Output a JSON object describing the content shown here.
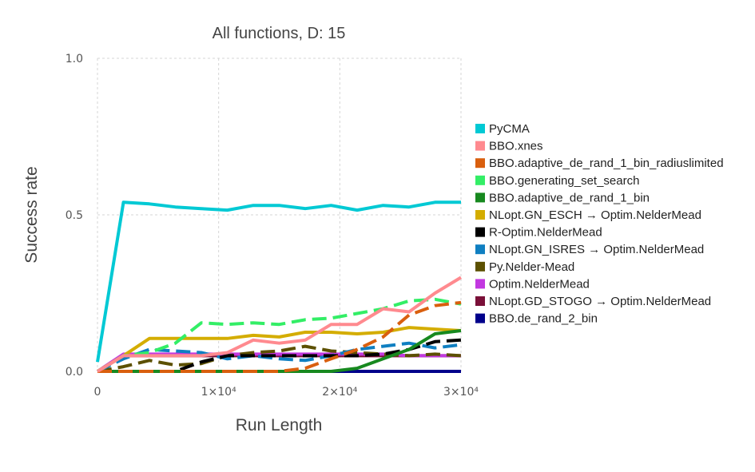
{
  "chart_data": {
    "type": "line",
    "title": "All functions, D: 15",
    "xlabel": "Run Length",
    "ylabel": "Success rate",
    "xlim": [
      0,
      30000
    ],
    "ylim": [
      0,
      1.0
    ],
    "x_ticks": [
      {
        "value": 0,
        "label": "0"
      },
      {
        "value": 10000,
        "label": "1×10⁴"
      },
      {
        "value": 20000,
        "label": "2×10⁴"
      },
      {
        "value": 30000,
        "label": "3×10⁴"
      }
    ],
    "y_ticks": [
      {
        "value": 0,
        "label": "0.0"
      },
      {
        "value": 0.5,
        "label": "0.5"
      },
      {
        "value": 1.0,
        "label": "1.0"
      }
    ],
    "grid": true,
    "legend_position": "right",
    "x": [
      0,
      2143,
      4286,
      6429,
      8571,
      10714,
      12857,
      15000,
      17143,
      19286,
      21429,
      23571,
      25714,
      27857,
      30000
    ],
    "series": [
      {
        "name": "PyCMA",
        "color": "#00c9d4",
        "dash": "solid",
        "values": [
          0.03,
          0.54,
          0.535,
          0.525,
          0.52,
          0.515,
          0.53,
          0.53,
          0.52,
          0.53,
          0.515,
          0.53,
          0.525,
          0.54,
          0.54
        ]
      },
      {
        "name": "BBO.xnes",
        "color": "#ff8a8f",
        "dash": "solid",
        "values": [
          0,
          0.05,
          0.05,
          0.05,
          0.05,
          0.06,
          0.1,
          0.09,
          0.1,
          0.15,
          0.15,
          0.2,
          0.19,
          0.25,
          0.3
        ]
      },
      {
        "name": "BBO.adaptive_de_rand_1_bin_radiuslimited",
        "color": "#d95f0e",
        "dash": "dash",
        "values": [
          0,
          0,
          0,
          0,
          0,
          0,
          0,
          0,
          0.01,
          0.04,
          0.07,
          0.11,
          0.18,
          0.21,
          0.22
        ]
      },
      {
        "name": "BBO.generating_set_search",
        "color": "#33ee66",
        "dash": "dash",
        "values": [
          0,
          0.05,
          0.06,
          0.09,
          0.155,
          0.15,
          0.155,
          0.15,
          0.165,
          0.17,
          0.185,
          0.2,
          0.225,
          0.23,
          0.215
        ]
      },
      {
        "name": "BBO.adaptive_de_rand_1_bin",
        "color": "#17891f",
        "dash": "solid",
        "values": [
          0,
          0,
          0,
          0,
          0,
          0,
          0,
          0,
          0,
          0,
          0.01,
          0.04,
          0.07,
          0.12,
          0.13
        ]
      },
      {
        "name": "NLopt.GN_ESCH → Optim.NelderMead",
        "color": "#d4ad00",
        "dash": "solid",
        "values": [
          0,
          0.05,
          0.105,
          0.105,
          0.105,
          0.105,
          0.115,
          0.11,
          0.125,
          0.125,
          0.12,
          0.125,
          0.14,
          0.135,
          0.13
        ]
      },
      {
        "name": "R-Optim.NelderMead",
        "color": "#000000",
        "dash": "dash",
        "values": [
          0,
          0,
          0,
          0,
          0.03,
          0.05,
          0.05,
          0.05,
          0.05,
          0.05,
          0.05,
          0.055,
          0.07,
          0.095,
          0.1
        ]
      },
      {
        "name": "NLopt.GN_ISRES → Optim.NelderMead",
        "color": "#0f7fc1",
        "dash": "dash",
        "values": [
          0,
          0.04,
          0.07,
          0.065,
          0.06,
          0.04,
          0.05,
          0.04,
          0.035,
          0.05,
          0.07,
          0.08,
          0.09,
          0.075,
          0.085
        ]
      },
      {
        "name": "Py.Nelder-Mead",
        "color": "#5c5000",
        "dash": "dash",
        "values": [
          0,
          0.015,
          0.035,
          0.02,
          0.025,
          0.05,
          0.06,
          0.065,
          0.08,
          0.065,
          0.06,
          0.055,
          0.05,
          0.055,
          0.05
        ]
      },
      {
        "name": "Optim.NelderMead",
        "color": "#c238e0",
        "dash": "solid",
        "values": [
          0,
          0.055,
          0.055,
          0.055,
          0.055,
          0.055,
          0.055,
          0.055,
          0.055,
          0.055,
          0.055,
          0.055,
          0.05,
          0.05,
          0.05
        ]
      },
      {
        "name": "NLopt.GD_STOGO → Optim.NelderMead",
        "color": "#7a1038",
        "dash": "solid",
        "values": [
          0,
          0.05,
          0.05,
          0.05,
          0.05,
          0.05,
          0.05,
          0.05,
          0.05,
          0.05,
          0.05,
          0.05,
          0.05,
          0.05,
          0.05
        ]
      },
      {
        "name": "BBO.de_rand_2_bin",
        "color": "#00008b",
        "dash": "solid",
        "values": [
          0,
          0,
          0,
          0,
          0,
          0,
          0,
          0,
          0,
          0,
          0,
          0,
          0,
          0,
          0
        ]
      }
    ]
  }
}
